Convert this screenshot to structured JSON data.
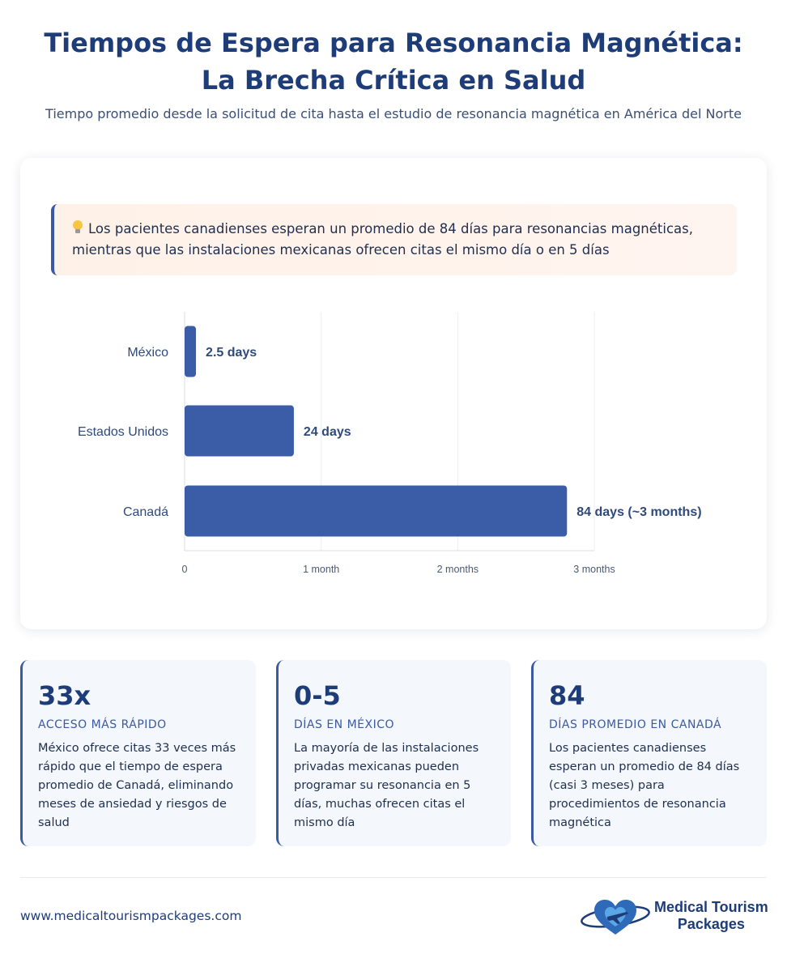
{
  "header": {
    "title": "Tiempos de Espera para Resonancia Magnética: La Brecha Crítica en Salud",
    "subtitle": "Tiempo promedio desde la solicitud de cita hasta el estudio de resonancia magnética en América del Norte"
  },
  "insight": {
    "icon": "lightbulb-icon",
    "text": "Los pacientes canadienses esperan un promedio de 84 días para resonancias magnéticas, mientras que las instalaciones mexicanas ofrecen citas el mismo día o en 5 días"
  },
  "chart_data": {
    "type": "bar",
    "orientation": "horizontal",
    "categories": [
      "México",
      "Estados Unidos",
      "Canadá"
    ],
    "values": [
      2.5,
      24,
      84
    ],
    "data_labels": [
      "2.5 days",
      "24 days",
      "84 days (~3 months)"
    ],
    "xlim": [
      0,
      90
    ],
    "x_ticks": [
      0,
      30,
      60,
      90
    ],
    "x_tick_labels": [
      "0",
      "1 month",
      "2 months",
      "3 months"
    ],
    "grid": true,
    "bar_color": "#3b5ca6",
    "title": "",
    "xlabel": "",
    "ylabel": ""
  },
  "stats": [
    {
      "value": "33x",
      "label": "ACCESO MÁS RÁPIDO",
      "description": "México ofrece citas 33 veces más rápido que el tiempo de espera promedio de Canadá, eliminando meses de ansiedad y riesgos de salud"
    },
    {
      "value": "0-5",
      "label": "DÍAS EN MÉXICO",
      "description": "La mayoría de las instalaciones privadas mexicanas pueden programar su resonancia en 5 días, muchas ofrecen citas el mismo día"
    },
    {
      "value": "84",
      "label": "DÍAS PROMEDIO EN CANADÁ",
      "description": "Los pacientes canadienses esperan un promedio de 84 días (casi 3 meses) para procedimientos de resonancia magnética"
    }
  ],
  "footer": {
    "url": "www.medicaltourismpackages.com",
    "logo_line1": "Medical Tourism",
    "logo_line2": "Packages",
    "logo_icon": "heart-airplane-icon"
  },
  "colors": {
    "primary": "#1e3d78",
    "bar": "#3b5ca6",
    "accent_border": "#3b5aa3"
  }
}
